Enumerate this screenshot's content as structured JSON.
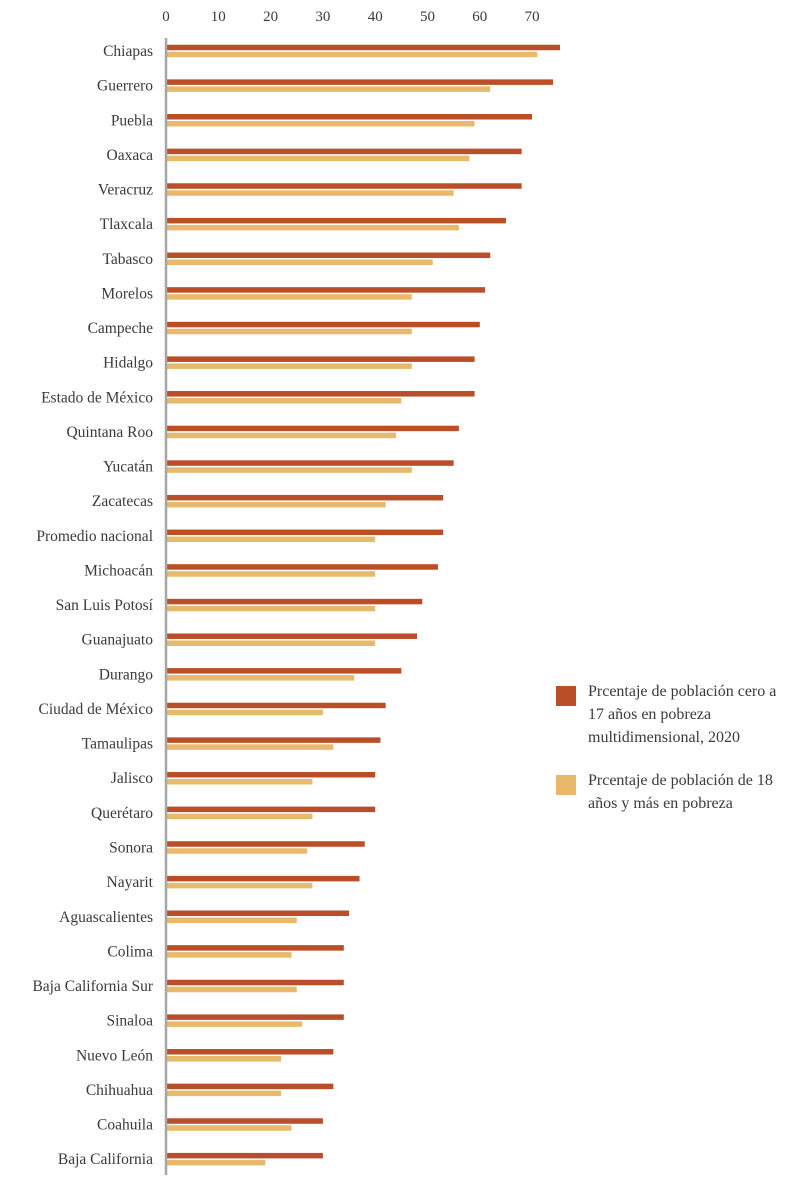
{
  "colors": {
    "series1": "#b94e28",
    "series2": "#e8b96a",
    "axis": "#a6a6a6",
    "text": "#3a3a3a"
  },
  "legend": {
    "items": [
      {
        "label": "Prcentaje de población cero a 17 años en pobreza multidimensional, 2020"
      },
      {
        "label": "Prcentaje de población de 18 años y más en pobreza"
      }
    ]
  },
  "chart_data": {
    "type": "bar",
    "orientation": "horizontal",
    "xlim": [
      0,
      90
    ],
    "xticks": [
      0,
      10,
      20,
      30,
      40,
      50,
      60,
      70,
      80,
      90
    ],
    "grid": false,
    "legend_position": "right",
    "categories": [
      "Chiapas",
      "Guerrero",
      "Puebla",
      "Oaxaca",
      "Veracruz",
      "Tlaxcala",
      "Tabasco",
      "Morelos",
      "Campeche",
      "Hidalgo",
      "Estado de México",
      "Quintana Roo",
      "Yucatán",
      "Zacatecas",
      "Promedio nacional",
      "Michoacán",
      "San Luis Potosí",
      "Guanajuato",
      "Durango",
      "Ciudad de México",
      "Tamaulipas",
      "Jalisco",
      "Querétaro",
      "Sonora",
      "Nayarit",
      "Aguascalientes",
      "Colima",
      "Baja California Sur",
      "Sinaloa",
      "Nuevo León",
      "Chihuahua",
      "Coahuila",
      "Baja California"
    ],
    "series": [
      {
        "name": "Prcentaje de población cero a 17 años en pobreza multidimensional, 2020",
        "values": [
          82,
          74,
          70,
          68,
          68,
          65,
          62,
          61,
          60,
          59,
          59,
          56,
          55,
          53,
          53,
          52,
          49,
          48,
          45,
          42,
          41,
          40,
          40,
          38,
          37,
          35,
          34,
          34,
          34,
          32,
          32,
          30,
          30
        ]
      },
      {
        "name": "Prcentaje de población de 18 años y más en pobreza",
        "values": [
          71,
          62,
          59,
          58,
          55,
          56,
          51,
          47,
          47,
          47,
          45,
          44,
          47,
          42,
          40,
          40,
          40,
          40,
          36,
          30,
          32,
          28,
          28,
          27,
          28,
          25,
          24,
          25,
          26,
          22,
          22,
          24,
          19
        ]
      }
    ]
  }
}
